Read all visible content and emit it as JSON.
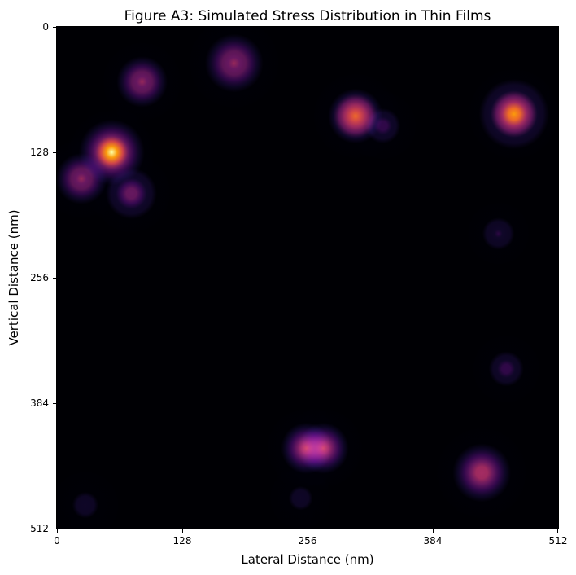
{
  "chart_data": {
    "type": "heatmap",
    "title": "Figure A3: Simulated Stress Distribution in Thin Films",
    "xlabel": "Lateral Distance (nm)",
    "ylabel": "Vertical Distance (nm)",
    "xlim": [
      0,
      512
    ],
    "ylim": [
      512,
      0
    ],
    "xticks": [
      "0",
      "128",
      "256",
      "384",
      "512"
    ],
    "yticks": [
      "0",
      "128",
      "256",
      "384",
      "512"
    ],
    "colormap": "inferno",
    "grid": false,
    "legend": null,
    "colorbar": false,
    "hotspots": [
      {
        "x": 87,
        "y": 56,
        "intensity": 0.6,
        "sigma": 14
      },
      {
        "x": 181,
        "y": 37,
        "intensity": 0.6,
        "sigma": 16
      },
      {
        "x": 56,
        "y": 128,
        "intensity": 1.0,
        "sigma": 15
      },
      {
        "x": 25,
        "y": 155,
        "intensity": 0.6,
        "sigma": 14
      },
      {
        "x": 76,
        "y": 170,
        "intensity": 0.55,
        "sigma": 14
      },
      {
        "x": 305,
        "y": 91,
        "intensity": 0.85,
        "sigma": 15
      },
      {
        "x": 333,
        "y": 101,
        "intensity": 0.35,
        "sigma": 12
      },
      {
        "x": 467,
        "y": 89,
        "intensity": 0.9,
        "sigma": 16
      },
      {
        "x": 451,
        "y": 211,
        "intensity": 0.3,
        "sigma": 11
      },
      {
        "x": 459,
        "y": 349,
        "intensity": 0.35,
        "sigma": 12
      },
      {
        "x": 255,
        "y": 430,
        "intensity": 0.75,
        "sigma": 14
      },
      {
        "x": 272,
        "y": 430,
        "intensity": 0.75,
        "sigma": 14
      },
      {
        "x": 434,
        "y": 455,
        "intensity": 0.7,
        "sigma": 16
      },
      {
        "x": 249,
        "y": 481,
        "intensity": 0.25,
        "sigma": 11
      },
      {
        "x": 29,
        "y": 488,
        "intensity": 0.25,
        "sigma": 12
      }
    ]
  }
}
